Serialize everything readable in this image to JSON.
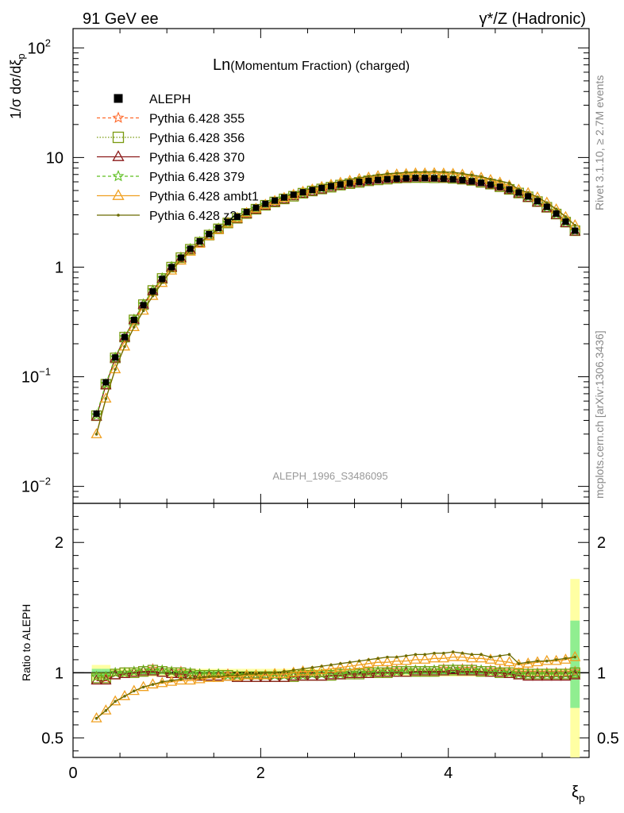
{
  "header": {
    "left": "91 GeV ee",
    "right": "γ*/Z (Hadronic)"
  },
  "title": {
    "prefix": "Ln",
    "rest": "(Momentum Fraction) (charged)"
  },
  "side_labels": {
    "rivet": "Rivet 3.1.10, ≥ 2.7M events",
    "mcplots": "mcplots.cern.ch [arXiv:1306.3436]"
  },
  "watermark": "ALEPH_1996_S3486095",
  "ylabel_top": "1/σ dσ/dξp",
  "ylabel_bottom": "Ratio to ALEPH",
  "xlabel": "ξp",
  "legend": [
    {
      "label": "ALEPH",
      "color": "#000000",
      "marker": "square-filled",
      "dash": ""
    },
    {
      "label": "Pythia 6.428 355",
      "color": "#ff6a2c",
      "marker": "star",
      "dash": "4,3"
    },
    {
      "label": "Pythia 6.428 356",
      "color": "#7a9a10",
      "marker": "square-open",
      "dash": "1.5,2"
    },
    {
      "label": "Pythia 6.428 370",
      "color": "#8b1a1a",
      "marker": "triangle-open",
      "dash": ""
    },
    {
      "label": "Pythia 6.428 379",
      "color": "#5fbf22",
      "marker": "star",
      "dash": "4,3"
    },
    {
      "label": "Pythia 6.428 ambt1",
      "color": "#f0a020",
      "marker": "triangle-open",
      "dash": ""
    },
    {
      "label": "Pythia 6.428 z2",
      "color": "#6b6b00",
      "marker": "dot",
      "dash": ""
    }
  ],
  "chart_data": {
    "type": "line",
    "title": "Ln(Momentum Fraction) (charged)",
    "xlabel": "ξp",
    "ylabel": "1/σ dσ/dξp",
    "xlim": [
      0,
      5.5
    ],
    "ylim": [
      0.007,
      150
    ],
    "yscale": "log",
    "ratio_ylim": [
      0.35,
      2.3
    ],
    "xticks": [
      "0",
      "2",
      "4"
    ],
    "yticks": [
      "10^-2",
      "10^-1",
      "1",
      "10",
      "10^2"
    ],
    "ratio_yticks": [
      "0.5",
      "1",
      "2"
    ],
    "x": [
      0.25,
      0.35,
      0.45,
      0.55,
      0.65,
      0.75,
      0.85,
      0.95,
      1.05,
      1.15,
      1.25,
      1.35,
      1.45,
      1.55,
      1.65,
      1.75,
      1.85,
      1.95,
      2.05,
      2.15,
      2.25,
      2.35,
      2.45,
      2.55,
      2.65,
      2.75,
      2.85,
      2.95,
      3.05,
      3.15,
      3.25,
      3.35,
      3.45,
      3.55,
      3.65,
      3.75,
      3.85,
      3.95,
      4.05,
      4.15,
      4.25,
      4.35,
      4.45,
      4.55,
      4.65,
      4.75,
      4.85,
      4.95,
      5.05,
      5.15,
      5.25,
      5.35
    ],
    "aleph": [
      0.046,
      0.089,
      0.15,
      0.23,
      0.33,
      0.45,
      0.6,
      0.78,
      1.0,
      1.22,
      1.47,
      1.72,
      2.0,
      2.28,
      2.58,
      2.88,
      3.18,
      3.48,
      3.78,
      4.05,
      4.32,
      4.57,
      4.82,
      5.05,
      5.27,
      5.47,
      5.66,
      5.83,
      5.99,
      6.13,
      6.25,
      6.35,
      6.42,
      6.48,
      6.5,
      6.5,
      6.47,
      6.42,
      6.33,
      6.22,
      6.07,
      5.88,
      5.66,
      5.41,
      5.12,
      4.79,
      4.42,
      4.0,
      3.55,
      3.08,
      2.6,
      2.15
    ],
    "series": [
      {
        "name": "Pythia 6.428 355",
        "ratio": [
          0.97,
          0.96,
          1.0,
          1.0,
          1.01,
          1.02,
          1.03,
          1.02,
          1.01,
          1.01,
          1.0,
          0.99,
          0.99,
          0.99,
          0.99,
          0.98,
          0.98,
          0.98,
          0.98,
          0.98,
          0.98,
          0.98,
          0.99,
          0.99,
          0.99,
          0.99,
          1.0,
          1.0,
          1.0,
          1.01,
          1.01,
          1.02,
          1.02,
          1.02,
          1.02,
          1.02,
          1.02,
          1.03,
          1.03,
          1.03,
          1.03,
          1.02,
          1.02,
          1.02,
          1.01,
          1.0,
          1.0,
          1.0,
          1.0,
          1.0,
          1.0,
          1.01
        ]
      },
      {
        "name": "Pythia 6.428 356",
        "ratio": [
          0.96,
          0.96,
          0.99,
          1.0,
          1.0,
          1.01,
          1.02,
          1.01,
          1.0,
          1.0,
          0.99,
          0.98,
          0.98,
          0.98,
          0.98,
          0.97,
          0.97,
          0.97,
          0.97,
          0.97,
          0.97,
          0.97,
          0.98,
          0.98,
          0.98,
          0.98,
          0.99,
          0.99,
          0.99,
          1.0,
          1.0,
          1.0,
          1.01,
          1.01,
          1.01,
          1.01,
          1.01,
          1.02,
          1.02,
          1.02,
          1.02,
          1.01,
          1.01,
          1.0,
          1.0,
          0.99,
          0.99,
          0.99,
          0.99,
          0.99,
          0.99,
          1.0
        ]
      },
      {
        "name": "Pythia 6.428 370",
        "ratio": [
          0.94,
          0.94,
          0.98,
          0.99,
          1.0,
          1.01,
          1.01,
          1.0,
          0.99,
          0.99,
          0.98,
          0.97,
          0.97,
          0.97,
          0.97,
          0.96,
          0.96,
          0.96,
          0.96,
          0.96,
          0.96,
          0.97,
          0.97,
          0.97,
          0.97,
          0.98,
          0.98,
          0.99,
          0.99,
          0.99,
          1.0,
          1.0,
          1.0,
          1.0,
          1.01,
          1.01,
          1.01,
          1.01,
          1.02,
          1.01,
          1.01,
          1.01,
          1.0,
          1.0,
          0.99,
          0.98,
          0.97,
          0.97,
          0.97,
          0.97,
          0.97,
          0.98
        ]
      },
      {
        "name": "Pythia 6.428 379",
        "ratio": [
          0.97,
          0.97,
          1.0,
          1.0,
          1.01,
          1.02,
          1.02,
          1.02,
          1.01,
          1.0,
          1.0,
          0.99,
          0.99,
          0.99,
          0.98,
          0.98,
          0.98,
          0.98,
          0.98,
          0.98,
          0.98,
          0.98,
          0.98,
          0.99,
          0.99,
          0.99,
          0.99,
          1.0,
          1.0,
          1.0,
          1.01,
          1.01,
          1.01,
          1.02,
          1.02,
          1.02,
          1.02,
          1.02,
          1.03,
          1.02,
          1.02,
          1.02,
          1.01,
          1.01,
          1.0,
          0.99,
          0.99,
          0.99,
          0.99,
          0.99,
          0.99,
          1.0
        ]
      },
      {
        "name": "Pythia 6.428 ambt1",
        "ratio": [
          0.65,
          0.71,
          0.78,
          0.82,
          0.86,
          0.89,
          0.91,
          0.92,
          0.93,
          0.94,
          0.94,
          0.95,
          0.96,
          0.96,
          0.97,
          0.97,
          0.98,
          0.98,
          0.98,
          0.99,
          0.99,
          1.0,
          1.01,
          1.01,
          1.02,
          1.03,
          1.04,
          1.05,
          1.06,
          1.07,
          1.08,
          1.08,
          1.09,
          1.09,
          1.1,
          1.1,
          1.11,
          1.11,
          1.12,
          1.12,
          1.11,
          1.11,
          1.1,
          1.09,
          1.08,
          1.06,
          1.07,
          1.08,
          1.09,
          1.09,
          1.1,
          1.12
        ]
      },
      {
        "name": "Pythia 6.428 z2",
        "ratio": [
          0.65,
          0.71,
          0.78,
          0.82,
          0.86,
          0.89,
          0.91,
          0.93,
          0.94,
          0.95,
          0.96,
          0.96,
          0.97,
          0.97,
          0.98,
          0.98,
          0.99,
          0.99,
          1.0,
          1.0,
          1.01,
          1.02,
          1.03,
          1.04,
          1.05,
          1.06,
          1.07,
          1.08,
          1.09,
          1.1,
          1.11,
          1.12,
          1.12,
          1.13,
          1.14,
          1.14,
          1.15,
          1.15,
          1.16,
          1.15,
          1.14,
          1.14,
          1.12,
          1.13,
          1.14,
          1.07,
          1.08,
          1.09,
          1.09,
          1.1,
          1.11,
          1.12
        ]
      }
    ]
  }
}
